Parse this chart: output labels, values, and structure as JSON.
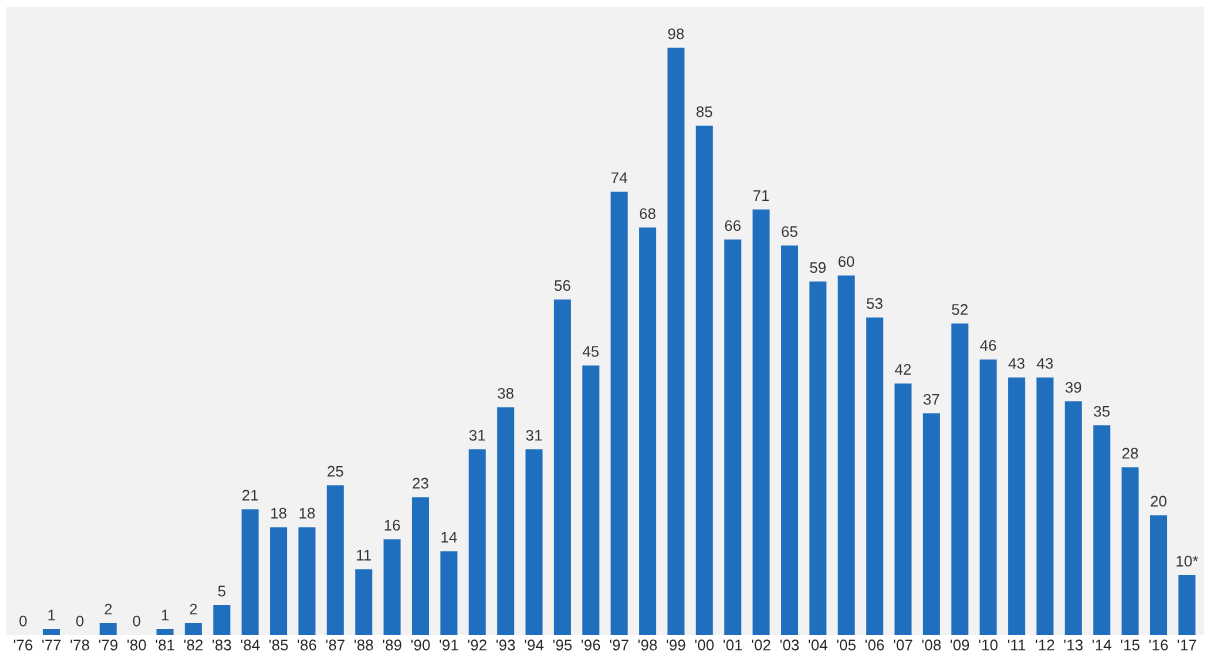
{
  "chart_data": {
    "type": "bar",
    "categories": [
      "'76",
      "'77",
      "'78",
      "'79",
      "'80",
      "'81",
      "'82",
      "'83",
      "'84",
      "'85",
      "'86",
      "'87",
      "'88",
      "'89",
      "'90",
      "'91",
      "'92",
      "'93",
      "'94",
      "'95",
      "'96",
      "'97",
      "'98",
      "'99",
      "'00",
      "'01",
      "'02",
      "'03",
      "'04",
      "'05",
      "'06",
      "'07",
      "'08",
      "'09",
      "'10",
      "'11",
      "'12",
      "'13",
      "'14",
      "'15",
      "'16",
      "'17"
    ],
    "values": [
      0,
      1,
      0,
      2,
      0,
      1,
      2,
      5,
      21,
      18,
      18,
      25,
      11,
      16,
      23,
      14,
      31,
      38,
      31,
      56,
      45,
      74,
      68,
      98,
      85,
      66,
      71,
      65,
      59,
      60,
      53,
      42,
      37,
      52,
      46,
      43,
      43,
      39,
      35,
      28,
      20,
      10
    ],
    "value_labels": [
      "0",
      "1",
      "0",
      "2",
      "0",
      "1",
      "2",
      "5",
      "21",
      "18",
      "18",
      "25",
      "11",
      "16",
      "23",
      "14",
      "31",
      "38",
      "31",
      "56",
      "45",
      "74",
      "68",
      "98",
      "85",
      "66",
      "71",
      "65",
      "59",
      "60",
      "53",
      "42",
      "37",
      "52",
      "46",
      "43",
      "43",
      "39",
      "35",
      "28",
      "20",
      "10*"
    ],
    "color": "#1f6fbe",
    "grid": false,
    "legend": false
  }
}
